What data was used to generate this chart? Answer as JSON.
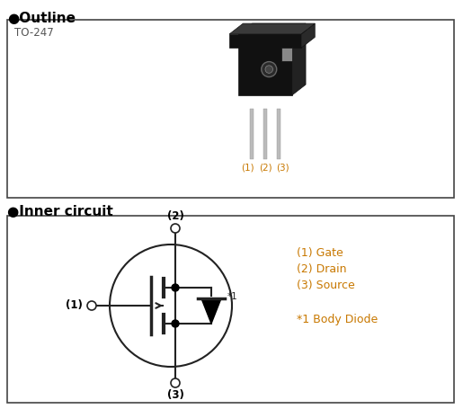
{
  "title_outline": "●Outline",
  "title_inner": "●Inner circuit",
  "package_label": "TO-247",
  "pin_labels": [
    "(1)",
    "(2)",
    "(3)"
  ],
  "legend_lines": [
    "(1) Gate",
    "(2) Drain",
    "(3) Source"
  ],
  "body_diode_label": "*1 Body Diode",
  "star1_label": "*1",
  "title_color": "#000000",
  "label_color": "#c87800",
  "border_color": "#444444",
  "mosfet_color": "#222222",
  "bg_color": "#ffffff",
  "title_fontsize": 11,
  "label_fontsize": 8,
  "legend_fontsize": 9
}
